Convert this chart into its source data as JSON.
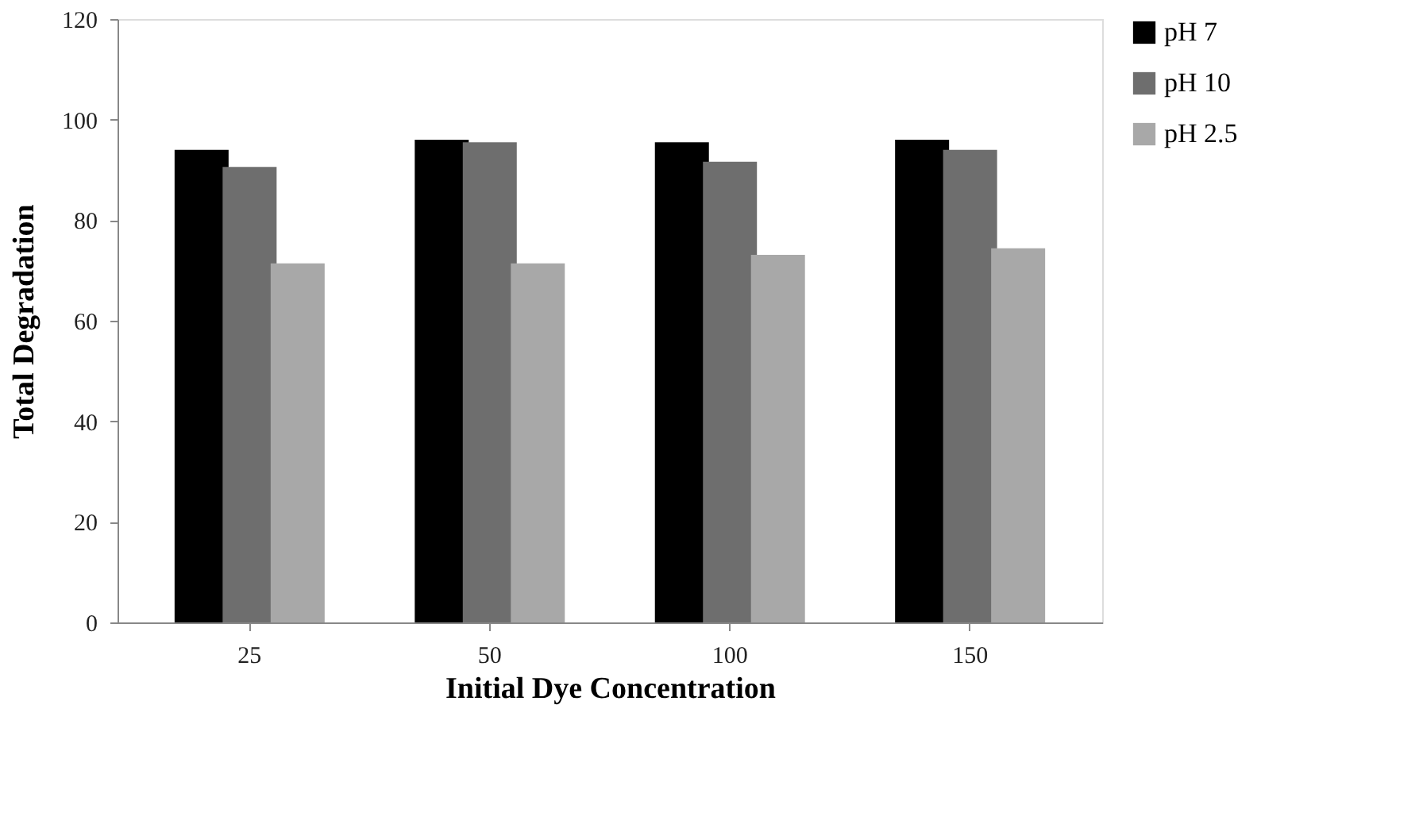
{
  "chart_data": {
    "type": "bar",
    "xlabel": "Initial Dye Concentration",
    "ylabel": "Total Degradation",
    "categories": [
      "25",
      "50",
      "100",
      "150"
    ],
    "series": [
      {
        "name": "pH 7",
        "color": "#000000",
        "values": [
          94.0,
          96.0,
          95.5,
          96.0
        ]
      },
      {
        "name": "pH 10",
        "color": "#6e6e6e",
        "values": [
          90.6,
          95.5,
          91.6,
          94.0
        ]
      },
      {
        "name": "pH 2.5",
        "color": "#a8a8a8",
        "values": [
          71.4,
          71.4,
          73.1,
          74.4
        ]
      }
    ],
    "ylim": [
      0,
      120
    ],
    "yticks": [
      0,
      20,
      40,
      60,
      80,
      100,
      120
    ],
    "grid": false,
    "legend": "right"
  }
}
